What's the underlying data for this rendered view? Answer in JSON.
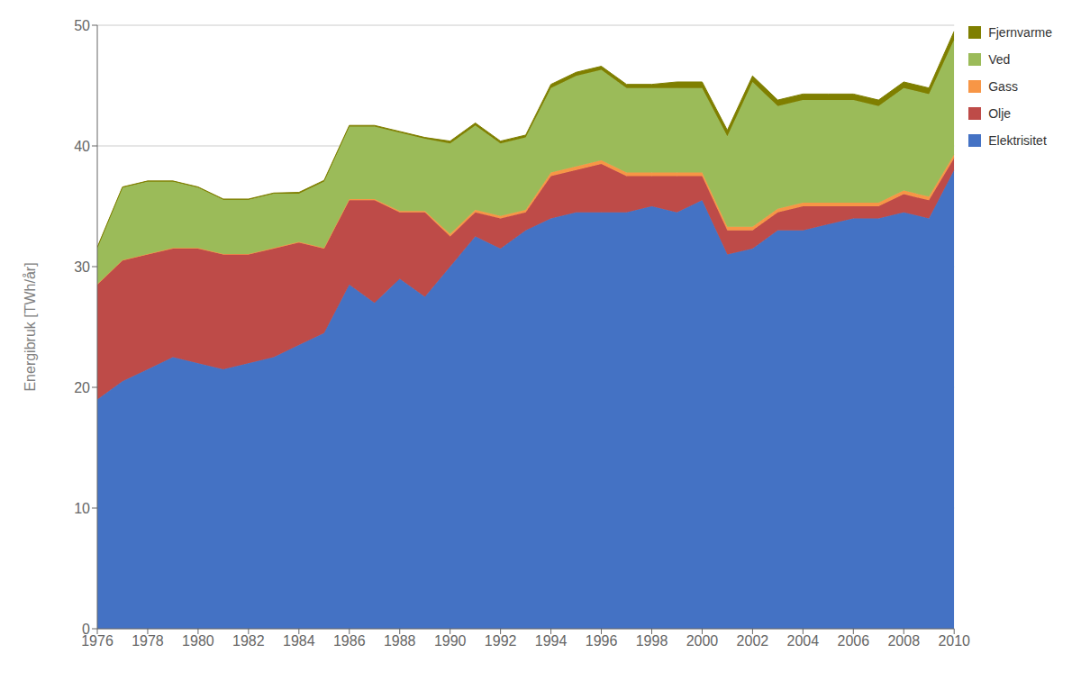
{
  "chart_data": {
    "type": "area",
    "stacked": true,
    "ylabel": "Energibruk [TWh/år]",
    "x": [
      1976,
      1977,
      1978,
      1979,
      1980,
      1981,
      1982,
      1983,
      1984,
      1985,
      1986,
      1987,
      1988,
      1989,
      1990,
      1991,
      1992,
      1993,
      1994,
      1995,
      1996,
      1997,
      1998,
      1999,
      2000,
      2001,
      2002,
      2003,
      2004,
      2005,
      2006,
      2007,
      2008,
      2009,
      2010
    ],
    "series": [
      {
        "name": "Elektrisitet",
        "color": "#4472C4",
        "values": [
          19.0,
          20.5,
          21.5,
          22.5,
          22.0,
          21.5,
          22.0,
          22.5,
          23.5,
          24.5,
          28.5,
          27.0,
          29.0,
          27.5,
          30.0,
          32.5,
          31.5,
          33.0,
          34.0,
          34.5,
          34.5,
          34.5,
          35.0,
          34.5,
          35.5,
          31.0,
          31.5,
          33.0,
          33.0,
          33.5,
          34.0,
          34.0,
          34.5,
          34.0,
          38.0
        ]
      },
      {
        "name": "Olje",
        "color": "#BE4B48",
        "values": [
          9.5,
          10.0,
          9.5,
          9.0,
          9.5,
          9.5,
          9.0,
          9.0,
          8.5,
          7.0,
          7.0,
          8.5,
          5.5,
          7.0,
          2.5,
          2.0,
          2.5,
          1.5,
          3.5,
          3.5,
          4.0,
          3.0,
          2.5,
          3.0,
          2.0,
          2.0,
          1.5,
          1.5,
          2.0,
          1.5,
          1.0,
          1.0,
          1.5,
          1.5,
          1.0
        ]
      },
      {
        "name": "Gass",
        "color": "#F79646",
        "values": [
          0.05,
          0.05,
          0.05,
          0.05,
          0.05,
          0.05,
          0.05,
          0.05,
          0.05,
          0.05,
          0.1,
          0.1,
          0.1,
          0.1,
          0.2,
          0.2,
          0.2,
          0.2,
          0.3,
          0.3,
          0.3,
          0.3,
          0.3,
          0.3,
          0.3,
          0.3,
          0.3,
          0.3,
          0.3,
          0.3,
          0.3,
          0.3,
          0.3,
          0.3,
          0.3
        ]
      },
      {
        "name": "Ved",
        "color": "#9BBB59",
        "values": [
          3.0,
          6.0,
          6.0,
          5.5,
          5.0,
          4.5,
          4.5,
          4.5,
          4.0,
          5.5,
          6.0,
          6.0,
          6.5,
          6.0,
          7.5,
          7.0,
          6.0,
          6.0,
          7.0,
          7.5,
          7.5,
          7.0,
          7.0,
          7.0,
          7.0,
          7.5,
          12.0,
          8.5,
          8.5,
          8.5,
          8.5,
          8.0,
          8.5,
          8.5,
          9.5
        ]
      },
      {
        "name": "Fjernvarme",
        "color": "#7F7F00",
        "values": [
          0.05,
          0.05,
          0.05,
          0.05,
          0.05,
          0.05,
          0.05,
          0.05,
          0.1,
          0.1,
          0.1,
          0.1,
          0.1,
          0.1,
          0.2,
          0.2,
          0.2,
          0.2,
          0.3,
          0.3,
          0.3,
          0.3,
          0.3,
          0.5,
          0.5,
          0.5,
          0.5,
          0.5,
          0.5,
          0.5,
          0.5,
          0.5,
          0.5,
          0.5,
          0.7
        ]
      }
    ],
    "xlim": [
      1976,
      2010
    ],
    "xticks": [
      1976,
      1978,
      1980,
      1982,
      1984,
      1986,
      1988,
      1990,
      1992,
      1994,
      1996,
      1998,
      2000,
      2002,
      2004,
      2006,
      2008,
      2010
    ],
    "ylim": [
      0,
      50
    ],
    "yticks": [
      0,
      10,
      20,
      30,
      40,
      50
    ],
    "grid": true,
    "legend": "right"
  }
}
